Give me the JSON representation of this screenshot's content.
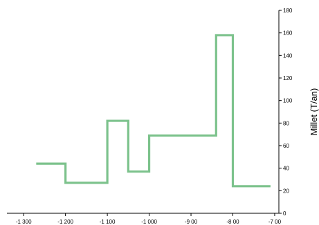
{
  "chart_data": {
    "type": "line",
    "step": true,
    "series": [
      {
        "color": "#7cc28c",
        "points": [
          [
            -1270,
            44
          ],
          [
            -1200,
            44
          ],
          [
            -1200,
            27
          ],
          [
            -1100,
            27
          ],
          [
            -1100,
            82
          ],
          [
            -1050,
            82
          ],
          [
            -1050,
            37
          ],
          [
            -1000,
            37
          ],
          [
            -1000,
            69
          ],
          [
            -840,
            69
          ],
          [
            -840,
            158
          ],
          [
            -800,
            158
          ],
          [
            -800,
            24
          ],
          [
            -710,
            24
          ]
        ]
      }
    ],
    "xlim": [
      -1340,
      -690
    ],
    "ylim": [
      0,
      180
    ],
    "x_ticks": [
      {
        "value": -1300,
        "label": "-1 300"
      },
      {
        "value": -1200,
        "label": "-1 200"
      },
      {
        "value": -1100,
        "label": "-1 100"
      },
      {
        "value": -1000,
        "label": "-1 000"
      },
      {
        "value": -900,
        "label": "-9 00"
      },
      {
        "value": -800,
        "label": "-8 00"
      },
      {
        "value": -700,
        "label": "-7 00"
      }
    ],
    "y_ticks": [
      {
        "value": 0,
        "label": "0"
      },
      {
        "value": 20,
        "label": "20"
      },
      {
        "value": 40,
        "label": "40"
      },
      {
        "value": 60,
        "label": "60"
      },
      {
        "value": 80,
        "label": "80"
      },
      {
        "value": 100,
        "label": "100"
      },
      {
        "value": 120,
        "label": "120"
      },
      {
        "value": 140,
        "label": "140"
      },
      {
        "value": 160,
        "label": "160"
      },
      {
        "value": 180,
        "label": "180"
      }
    ],
    "ylabel": "Millet (T/an)",
    "y_axis_side": "right",
    "grid": false,
    "legend": "none"
  }
}
